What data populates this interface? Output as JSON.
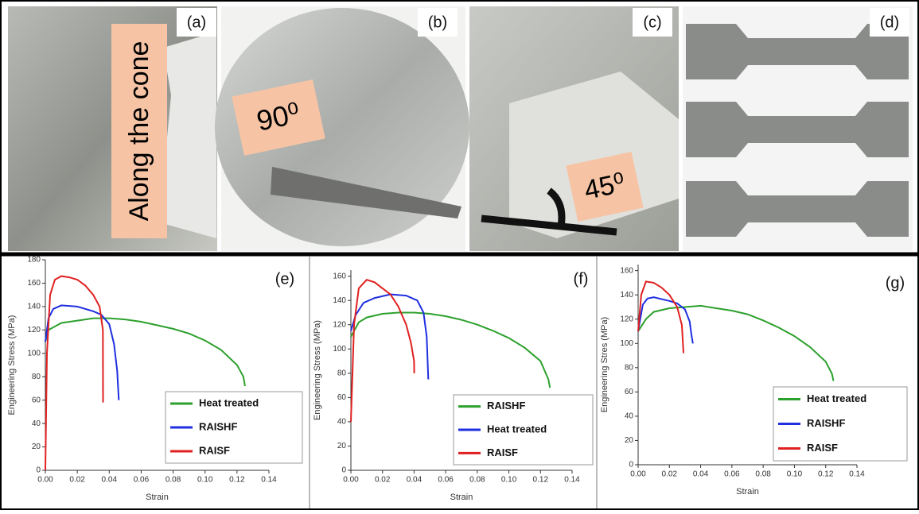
{
  "panels": [
    {
      "label": "(a)",
      "text": "Along the cone"
    },
    {
      "label": "(b)",
      "text": "90⁰"
    },
    {
      "label": "(c)",
      "text": "45⁰"
    },
    {
      "label": "(d)"
    }
  ],
  "chart_data": [
    {
      "type": "line",
      "panel_label": "(e)",
      "x_label": "Strain",
      "y_label": "Engineering Stress (MPa)",
      "xlim": [
        0,
        0.14
      ],
      "ylim": [
        0,
        180
      ],
      "xticks": [
        {
          "value": 0,
          "label": "0.00"
        },
        {
          "value": 0.02,
          "label": "0.02"
        },
        {
          "value": 0.04,
          "label": "0.04"
        },
        {
          "value": 0.06,
          "label": "0.06"
        },
        {
          "value": 0.08,
          "label": "0.08"
        },
        {
          "value": 0.1,
          "label": "0.10"
        },
        {
          "value": 0.12,
          "label": "0.12"
        },
        {
          "value": 0.14,
          "label": "0.14"
        }
      ],
      "yticks": [
        0,
        20,
        40,
        60,
        80,
        100,
        120,
        140,
        160,
        180
      ],
      "series": [
        {
          "name": "Heat treated",
          "color": "#2ca02c",
          "x": [
            0,
            0.002,
            0.01,
            0.02,
            0.03,
            0.04,
            0.05,
            0.06,
            0.07,
            0.08,
            0.09,
            0.1,
            0.11,
            0.12,
            0.124,
            0.125
          ],
          "values": [
            110,
            120,
            126,
            128,
            130,
            130,
            129,
            127,
            124,
            121,
            117,
            111,
            103,
            90,
            80,
            72
          ]
        },
        {
          "name": "RAISHF",
          "color": "#1f2fe0",
          "x": [
            0,
            0.002,
            0.005,
            0.01,
            0.02,
            0.03,
            0.035,
            0.04,
            0.043,
            0.045,
            0.046
          ],
          "values": [
            110,
            130,
            138,
            141,
            140,
            136,
            133,
            125,
            108,
            85,
            60
          ]
        },
        {
          "name": "RAISF",
          "color": "#e02020",
          "x": [
            0,
            0.001,
            0.003,
            0.006,
            0.01,
            0.015,
            0.02,
            0.025,
            0.03,
            0.034,
            0.036,
            0.0361
          ],
          "values": [
            0,
            100,
            150,
            163,
            166,
            165,
            163,
            158,
            150,
            140,
            120,
            58
          ]
        }
      ]
    },
    {
      "type": "line",
      "panel_label": "(f)",
      "x_label": "Strain",
      "y_label": "Engineering Stress (MPa)",
      "xlim": [
        0,
        0.14
      ],
      "ylim": [
        0,
        165
      ],
      "xticks": [
        {
          "value": 0,
          "label": "0.00"
        },
        {
          "value": 0.02,
          "label": "0.02"
        },
        {
          "value": 0.04,
          "label": "0.04"
        },
        {
          "value": 0.06,
          "label": "0.06"
        },
        {
          "value": 0.08,
          "label": "0.08"
        },
        {
          "value": 0.1,
          "label": "0.10"
        },
        {
          "value": 0.12,
          "label": "0.12"
        },
        {
          "value": 0.14,
          "label": "0.14"
        }
      ],
      "yticks": [
        0,
        20,
        40,
        60,
        80,
        100,
        120,
        140,
        160
      ],
      "series": [
        {
          "name": "RAISHF",
          "color": "#2ca02c",
          "x": [
            0,
            0.005,
            0.01,
            0.02,
            0.03,
            0.04,
            0.05,
            0.06,
            0.07,
            0.08,
            0.09,
            0.1,
            0.11,
            0.12,
            0.125,
            0.126
          ],
          "values": [
            110,
            122,
            126,
            129,
            130,
            130,
            129,
            127,
            124,
            120,
            115,
            109,
            101,
            90,
            75,
            68
          ]
        },
        {
          "name": "Heat treated",
          "color": "#1f2fe0",
          "x": [
            0,
            0.003,
            0.008,
            0.015,
            0.025,
            0.035,
            0.042,
            0.046,
            0.048,
            0.049
          ],
          "values": [
            115,
            128,
            138,
            142,
            145,
            144,
            140,
            130,
            110,
            75
          ]
        },
        {
          "name": "RAISF",
          "color": "#e02020",
          "x": [
            0,
            0.002,
            0.005,
            0.01,
            0.015,
            0.02,
            0.025,
            0.03,
            0.035,
            0.038,
            0.04,
            0.0401
          ],
          "values": [
            40,
            120,
            150,
            157,
            155,
            150,
            145,
            135,
            120,
            105,
            90,
            80
          ]
        }
      ]
    },
    {
      "type": "line",
      "panel_label": "(g)",
      "x_label": "Strain",
      "y_label": "Engineering Stres (MPa)",
      "xlim": [
        0,
        0.14
      ],
      "ylim": [
        0,
        165
      ],
      "xticks": [
        {
          "value": 0,
          "label": "0.00"
        },
        {
          "value": 0.02,
          "label": "0.02"
        },
        {
          "value": 0.04,
          "label": "0.04"
        },
        {
          "value": 0.06,
          "label": "0.06"
        },
        {
          "value": 0.08,
          "label": "0.08"
        },
        {
          "value": 0.1,
          "label": "0.10"
        },
        {
          "value": 0.12,
          "label": "0.12"
        },
        {
          "value": 0.14,
          "label": "0.14"
        }
      ],
      "yticks": [
        0,
        20,
        40,
        60,
        80,
        100,
        120,
        140,
        160
      ],
      "series": [
        {
          "name": "Heat treated",
          "color": "#2ca02c",
          "x": [
            0,
            0.005,
            0.01,
            0.02,
            0.03,
            0.04,
            0.05,
            0.06,
            0.07,
            0.08,
            0.09,
            0.1,
            0.11,
            0.12,
            0.124,
            0.125
          ],
          "values": [
            110,
            120,
            126,
            129,
            130,
            131,
            129,
            127,
            124,
            119,
            113,
            106,
            97,
            85,
            75,
            69
          ]
        },
        {
          "name": "RAISHF",
          "color": "#1f2fe0",
          "x": [
            0,
            0.003,
            0.006,
            0.01,
            0.02,
            0.025,
            0.03,
            0.033,
            0.034,
            0.035
          ],
          "values": [
            110,
            132,
            137,
            138,
            135,
            133,
            128,
            118,
            108,
            100
          ]
        },
        {
          "name": "RAISF",
          "color": "#e02020",
          "x": [
            0,
            0.002,
            0.005,
            0.01,
            0.015,
            0.02,
            0.025,
            0.028,
            0.029
          ],
          "values": [
            110,
            140,
            151,
            150,
            146,
            140,
            130,
            115,
            92
          ]
        }
      ]
    }
  ]
}
